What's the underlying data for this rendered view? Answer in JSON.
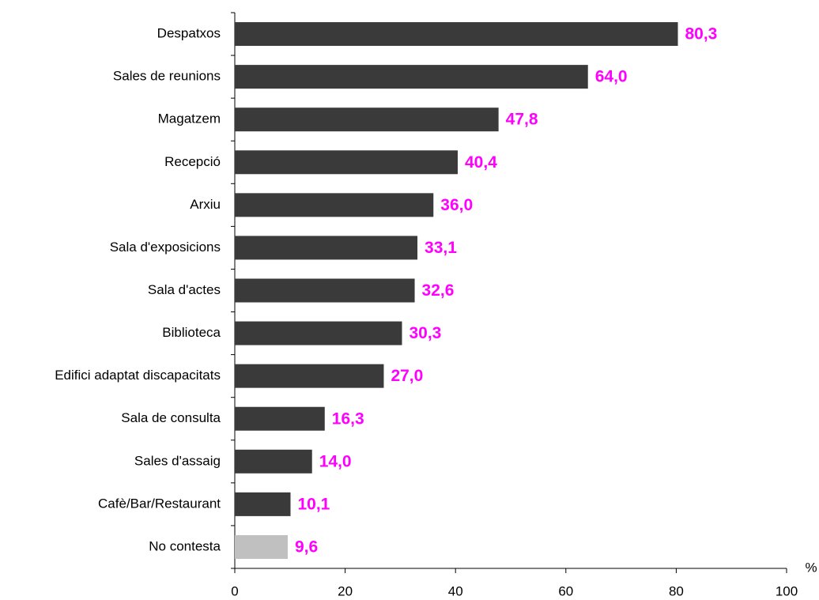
{
  "chart_data": {
    "type": "hbar",
    "categories": [
      "Despatxos",
      "Sales de reunions",
      "Magatzem",
      "Recepció",
      "Arxiu",
      "Sala d'exposicions",
      "Sala d'actes",
      "Biblioteca",
      "Edifici adaptat discapacitats",
      "Sala de consulta",
      "Sales d'assaig",
      "Cafè/Bar/Restaurant",
      "No contesta"
    ],
    "values": [
      80.3,
      64.0,
      47.8,
      40.4,
      36.0,
      33.1,
      32.6,
      30.3,
      27.0,
      16.3,
      14.0,
      10.1,
      9.6
    ],
    "value_labels": [
      "80,3",
      "64,0",
      "47,8",
      "40,4",
      "36,0",
      "33,1",
      "32,6",
      "30,3",
      "27,0",
      "16,3",
      "14,0",
      "10,1",
      "9,6"
    ],
    "colors": [
      "#3a3a3a",
      "#3a3a3a",
      "#3a3a3a",
      "#3a3a3a",
      "#3a3a3a",
      "#3a3a3a",
      "#3a3a3a",
      "#3a3a3a",
      "#3a3a3a",
      "#3a3a3a",
      "#3a3a3a",
      "#3a3a3a",
      "#c0c0c0"
    ],
    "xlabel": "%",
    "xlim": [
      0,
      100
    ],
    "xticks": [
      0,
      20,
      40,
      60,
      80,
      100
    ]
  }
}
